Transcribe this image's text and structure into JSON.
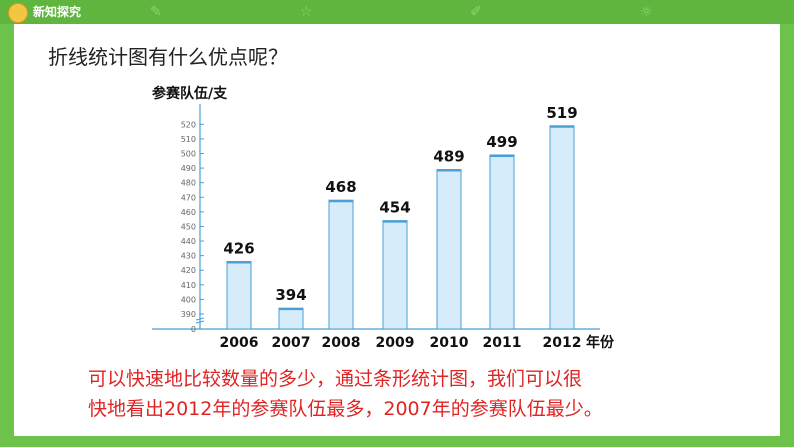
{
  "header": {
    "title": "新知探究",
    "icon": "mascot-icon"
  },
  "question": "折线统计图有什么优点呢？",
  "note": {
    "line1": "可以快速地比较数量的多少，通过条形统计图，我们可以很",
    "line2": "快地看出2012年的参赛队伍最多，2007年的参赛队伍最少。"
  },
  "colors": {
    "background": "#6cc24a",
    "bar_fill": "#d6ecfa",
    "bar_stroke": "#4a9fd4",
    "note_text": "#e02424"
  },
  "chart_data": {
    "type": "bar",
    "ylabel": "参赛队伍/支",
    "xlabel": "年份",
    "categories": [
      "2006",
      "2007",
      "2008",
      "2009",
      "2010",
      "2011",
      "2012"
    ],
    "values": [
      426,
      394,
      468,
      454,
      489,
      499,
      519
    ],
    "yticks": [
      0,
      390,
      400,
      410,
      420,
      430,
      440,
      450,
      460,
      470,
      480,
      490,
      500,
      510,
      520
    ],
    "ylim": [
      380,
      525
    ],
    "axis_break": true,
    "grid": false,
    "legend": "none"
  }
}
